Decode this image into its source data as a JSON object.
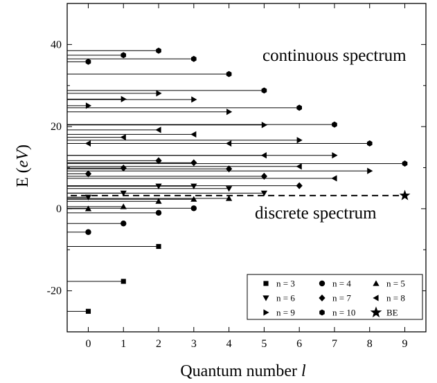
{
  "chart_data": {
    "type": "scatter",
    "xlabel": "Quantum number",
    "xlabel_var": "l",
    "ylabel": "E (",
    "ylabel_var": "eV",
    "ylabel_close": ")",
    "xlim": [
      -0.6,
      9.6
    ],
    "ylim": [
      -30,
      50
    ],
    "x_ticks": [
      0,
      1,
      2,
      3,
      4,
      5,
      6,
      7,
      8,
      9
    ],
    "y_ticks": [
      -20,
      0,
      20,
      40
    ],
    "annotations": {
      "continuous": "continuous spectrum",
      "discrete": "discrete spectrum"
    },
    "legend_position": "bottom-right",
    "series": [
      {
        "name": "n = 3",
        "marker": "square",
        "points": [
          [
            0,
            -25.0
          ],
          [
            1,
            -17.7
          ],
          [
            2,
            -9.2
          ]
        ]
      },
      {
        "name": "n = 4",
        "marker": "circle",
        "points": [
          [
            0,
            -5.7
          ],
          [
            1,
            -3.6
          ],
          [
            2,
            -1.0
          ],
          [
            3,
            0.1
          ]
        ]
      },
      {
        "name": "n = 5",
        "marker": "triangle-up",
        "points": [
          [
            0,
            0.0
          ],
          [
            1,
            0.5
          ],
          [
            2,
            1.8
          ],
          [
            3,
            2.3
          ],
          [
            4,
            2.5
          ]
        ]
      },
      {
        "name": "n = 6",
        "marker": "triangle-down",
        "points": [
          [
            0,
            2.8
          ],
          [
            1,
            3.8
          ],
          [
            2,
            5.5
          ],
          [
            3,
            5.5
          ],
          [
            4,
            4.9
          ],
          [
            5,
            3.8
          ]
        ]
      },
      {
        "name": "n = 7",
        "marker": "diamond",
        "points": [
          [
            0,
            8.5
          ],
          [
            1,
            9.9
          ],
          [
            2,
            11.7
          ],
          [
            3,
            11.2
          ],
          [
            4,
            9.7
          ],
          [
            5,
            7.9
          ],
          [
            6,
            5.6
          ]
        ]
      },
      {
        "name": "n = 8",
        "marker": "triangle-left",
        "points": [
          [
            0,
            15.9
          ],
          [
            1,
            17.4
          ],
          [
            2,
            19.2
          ],
          [
            3,
            18.1
          ],
          [
            4,
            15.9
          ],
          [
            5,
            13.0
          ],
          [
            6,
            10.3
          ],
          [
            7,
            7.4
          ]
        ]
      },
      {
        "name": "n = 9",
        "marker": "triangle-right",
        "points": [
          [
            0,
            25.1
          ],
          [
            1,
            26.7
          ],
          [
            2,
            28.1
          ],
          [
            3,
            26.6
          ],
          [
            4,
            23.6
          ],
          [
            5,
            20.4
          ],
          [
            6,
            16.7
          ],
          [
            7,
            13.0
          ],
          [
            8,
            9.2
          ]
        ]
      },
      {
        "name": "n = 10",
        "marker": "hexagon",
        "points": [
          [
            0,
            35.8
          ],
          [
            1,
            37.4
          ],
          [
            2,
            38.5
          ],
          [
            3,
            36.5
          ],
          [
            4,
            32.8
          ],
          [
            5,
            28.8
          ],
          [
            6,
            24.6
          ],
          [
            7,
            20.5
          ],
          [
            8,
            15.9
          ],
          [
            9,
            11.0
          ]
        ]
      },
      {
        "name": "BE",
        "marker": "star",
        "points": [
          [
            9,
            3.2
          ]
        ]
      }
    ],
    "be_energy": 3.2
  }
}
